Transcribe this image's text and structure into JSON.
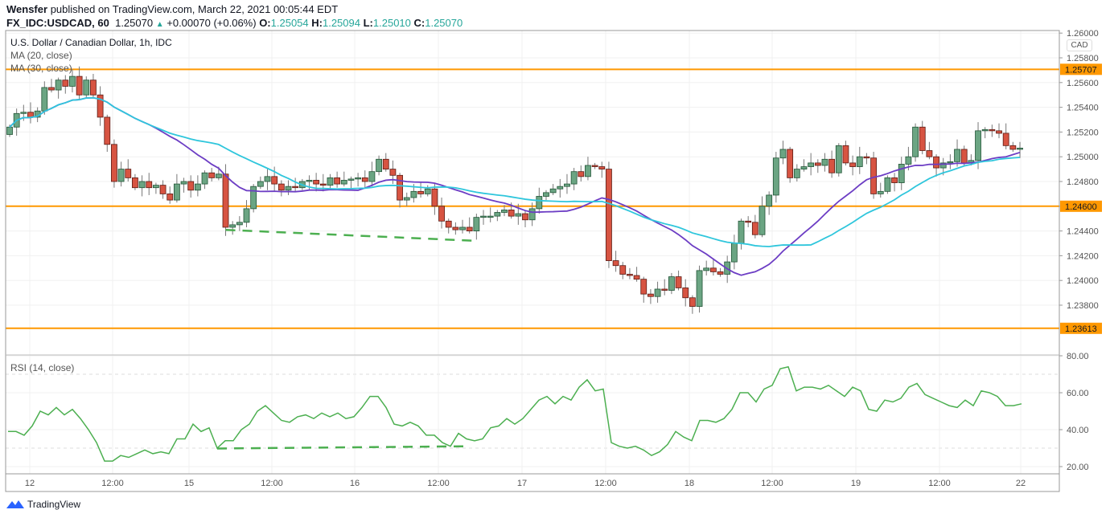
{
  "header": {
    "author": "Wensfer",
    "published": "published on TradingView.com, March 22, 2021 00:05:44 EDT",
    "symbol": "FX_IDC:USDCAD, 60",
    "last": "1.25070",
    "change": "+0.00070 (+0.06%)",
    "o_label": "O:",
    "o": "1.25054",
    "h_label": "H:",
    "h": "1.25094",
    "l_label": "L:",
    "l": "1.25010",
    "c_label": "C:",
    "c": "1.25070"
  },
  "legend": {
    "title": "U.S. Dollar / Canadian Dollar, 1h, IDC",
    "ma20": "MA (20, close)",
    "ma30": "MA (30, close)",
    "rsi": "RSI (14, close)"
  },
  "currency": "CAD",
  "footer": {
    "brand": "TradingView"
  },
  "colors": {
    "up": "#6ba583",
    "down": "#d75442",
    "ma20": "#6c3dc4",
    "ma30": "#2fc6dc",
    "level": "#ff9800",
    "trend": "#4caf50",
    "rsi": "#4caf50"
  },
  "chart_data": [
    {
      "type": "candlestick",
      "title": "U.S. Dollar / Canadian Dollar, 1h, IDC",
      "ylim": [
        1.2355,
        1.2605
      ],
      "y_ticks": [
        "1.26000",
        "1.25800",
        "1.25600",
        "1.25400",
        "1.25200",
        "1.25000",
        "1.24800",
        "1.24600",
        "1.24400",
        "1.24200",
        "1.24000",
        "1.23800"
      ],
      "x_ticks": [
        "12",
        "12:00",
        "15",
        "12:00",
        "16",
        "12:00",
        "17",
        "12:00",
        "18",
        "12:00",
        "19",
        "12:00",
        "22"
      ],
      "closes": [
        1.2524,
        1.2535,
        1.2536,
        1.2532,
        1.2537,
        1.2556,
        1.2554,
        1.2562,
        1.2557,
        1.2565,
        1.255,
        1.2562,
        1.255,
        1.2532,
        1.251,
        1.248,
        1.249,
        1.2483,
        1.2475,
        1.248,
        1.2475,
        1.2477,
        1.247,
        1.2465,
        1.2478,
        1.248,
        1.2473,
        1.2478,
        1.2487,
        1.2483,
        1.2486,
        1.2443,
        1.2445,
        1.2447,
        1.2458,
        1.2476,
        1.248,
        1.2484,
        1.2478,
        1.2473,
        1.2476,
        1.2475,
        1.248,
        1.2481,
        1.2478,
        1.2477,
        1.2483,
        1.2478,
        1.2481,
        1.2482,
        1.2483,
        1.248,
        1.2488,
        1.2498,
        1.249,
        1.2485,
        1.2465,
        1.2467,
        1.2472,
        1.247,
        1.2474,
        1.246,
        1.2448,
        1.2443,
        1.2441,
        1.2443,
        1.244,
        1.2451,
        1.2452,
        1.2452,
        1.2455,
        1.2457,
        1.2452,
        1.2454,
        1.2449,
        1.2458,
        1.2468,
        1.2471,
        1.2474,
        1.2476,
        1.2478,
        1.2488,
        1.2484,
        1.2493,
        1.2492,
        1.249,
        1.2416,
        1.2412,
        1.2405,
        1.2404,
        1.2401,
        1.2389,
        1.2387,
        1.2393,
        1.2392,
        1.2403,
        1.2394,
        1.2386,
        1.2379,
        1.2408,
        1.241,
        1.2407,
        1.2405,
        1.2415,
        1.243,
        1.2448,
        1.2447,
        1.2437,
        1.246,
        1.2469,
        1.2499,
        1.2506,
        1.2483,
        1.249,
        1.2492,
        1.2495,
        1.2493,
        1.2498,
        1.2487,
        1.2509,
        1.2495,
        1.2492,
        1.25,
        1.2499,
        1.247,
        1.2472,
        1.2483,
        1.2479,
        1.2494,
        1.25,
        1.2524,
        1.2505,
        1.25,
        1.2491,
        1.2495,
        1.2496,
        1.2506,
        1.2495,
        1.2497,
        1.2521,
        1.2522,
        1.2521,
        1.2519,
        1.2509,
        1.2506,
        1.2507
      ],
      "series": [
        {
          "name": "MA (20, close)",
          "period": 20
        },
        {
          "name": "MA (30, close)",
          "period": 30
        }
      ],
      "levels": [
        1.25707,
        1.246,
        1.23613
      ],
      "level_labels": [
        "1.25707",
        "1.24600",
        "1.23613"
      ],
      "trendline": {
        "from_index": 31,
        "to_index": 67,
        "from": 1.24409,
        "to": 1.2432,
        "style": "dashed"
      }
    },
    {
      "type": "line",
      "title": "RSI (14, close)",
      "ylim": [
        15,
        85
      ],
      "y_ticks": [
        "80.00",
        "60.00",
        "40.00",
        "20.00"
      ],
      "bands": [
        70,
        30
      ],
      "values": [
        39,
        39,
        37,
        42,
        50,
        48,
        52,
        48,
        51,
        46,
        40,
        33,
        23,
        23,
        26,
        25,
        27,
        29,
        27,
        28,
        27,
        35,
        35,
        43,
        39,
        41,
        30,
        34,
        34,
        40,
        43,
        50,
        53,
        49,
        45,
        44,
        47,
        48,
        46,
        49,
        47,
        49,
        46,
        47,
        52,
        58,
        58,
        52,
        43,
        42,
        44,
        42,
        37,
        37,
        33,
        31,
        38,
        35,
        34,
        35,
        41,
        42,
        46,
        43,
        46,
        51,
        56,
        58,
        54,
        58,
        56,
        63,
        67,
        61,
        62,
        33,
        31,
        30,
        31,
        29,
        26,
        28,
        32,
        39,
        36,
        34,
        45,
        45,
        44,
        46,
        51,
        60,
        60,
        55,
        62,
        64,
        73,
        74,
        61,
        63,
        63,
        62,
        64,
        61,
        58,
        63,
        61,
        51,
        50,
        56,
        55,
        57,
        63,
        65,
        59,
        57,
        55,
        53,
        52,
        56,
        53,
        61,
        60,
        58,
        53,
        53,
        54
      ],
      "trendline": {
        "from": 29.8,
        "to": 31,
        "style": "dashed"
      }
    }
  ]
}
